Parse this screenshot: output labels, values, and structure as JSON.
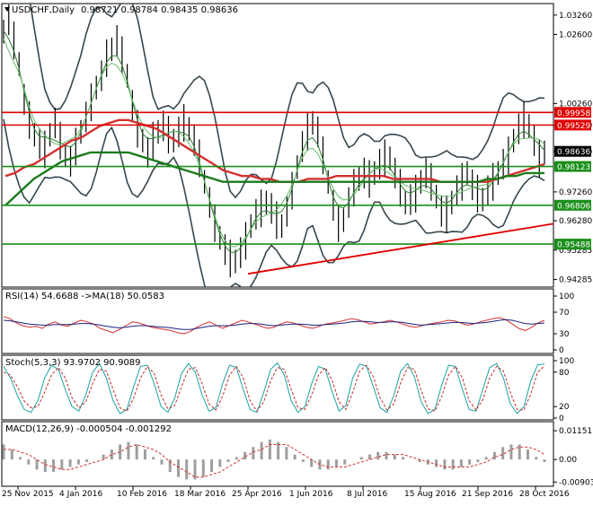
{
  "colors": {
    "background": "#ffffff",
    "frame": "#000000",
    "price_bar": "#000000",
    "ma_fast": "#2e7d32",
    "ma_mid": "#66bb6a",
    "ma_slow_red": "#d32f2f",
    "ma_slow_green": "#1b7a1b",
    "bollinger": "#37474f",
    "level_red": "#e00000",
    "level_green": "#1a8f1a",
    "trendline": "#e00000",
    "rsi_line": "#d32f2f",
    "rsi_signal": "#1a237e",
    "stoch_main": "#1aa3a3",
    "stoch_signal": "#c62828",
    "macd_hist": "#9e9e9e",
    "macd_signal": "#d32f2f",
    "current_price_tag": "#000000"
  },
  "header": {
    "symbol_label": "USDCHF,Daily",
    "ohlc": "0.98721 0.98784 0.98435 0.98636"
  },
  "chart_data": [
    {
      "type": "line",
      "panel": "price",
      "title": "USDCHF,Daily",
      "y_ticks": [
        "1.03260",
        "1.02600",
        "1.00260",
        "0.99520",
        "0.98630",
        "0.97260",
        "0.96280",
        "0.95285",
        "0.94285"
      ],
      "y_tick_values": [
        1.0326,
        1.026,
        1.0026,
        0.9952,
        0.9863,
        0.9726,
        0.9628,
        0.95285,
        0.94285
      ],
      "ylim": [
        0.9409,
        1.0359
      ],
      "levels": [
        {
          "label": "0.99958",
          "value": 0.99958,
          "color": "red"
        },
        {
          "label": "0.99529",
          "value": 0.99529,
          "color": "red"
        },
        {
          "label": "0.98123",
          "value": 0.98123,
          "color": "green"
        },
        {
          "label": "0.96806",
          "value": 0.96806,
          "color": "green"
        },
        {
          "label": "0.95488",
          "value": 0.95488,
          "color": "green"
        }
      ],
      "current_price_label": "0.98636",
      "current_price": 0.98636,
      "trendline": {
        "from": {
          "date": "25 Apr 2016",
          "value": 0.9448
        },
        "to": {
          "date": "28 Oct 2016",
          "value": 0.9618
        }
      },
      "close_series": [
        1.027,
        1.031,
        1.024,
        1.016,
        1.004,
        0.997,
        0.992,
        0.989,
        0.987,
        0.992,
        0.996,
        0.99,
        0.985,
        0.983,
        0.988,
        0.993,
        0.998,
        1.003,
        1.008,
        1.012,
        1.018,
        1.021,
        1.024,
        1.019,
        1.012,
        1.002,
        0.994,
        0.99,
        0.986,
        0.99,
        0.993,
        0.995,
        0.992,
        0.99,
        0.993,
        0.996,
        0.994,
        0.99,
        0.984,
        0.976,
        0.969,
        0.962,
        0.957,
        0.953,
        0.95,
        0.949,
        0.952,
        0.956,
        0.961,
        0.965,
        0.967,
        0.969,
        0.967,
        0.963,
        0.961,
        0.966,
        0.973,
        0.981,
        0.988,
        0.993,
        0.996,
        0.993,
        0.985,
        0.976,
        0.968,
        0.962,
        0.963,
        0.969,
        0.974,
        0.977,
        0.979,
        0.977,
        0.979,
        0.982,
        0.984,
        0.984,
        0.979,
        0.974,
        0.969,
        0.97,
        0.972,
        0.976,
        0.979,
        0.976,
        0.971,
        0.966,
        0.965,
        0.969,
        0.973,
        0.976,
        0.979,
        0.975,
        0.972,
        0.97,
        0.973,
        0.976,
        0.979,
        0.982,
        0.985,
        0.99,
        0.994,
        0.997,
        0.995,
        0.99,
        0.984,
        0.986
      ],
      "ma_red_series": [
        0.978,
        0.979,
        0.981,
        0.982,
        0.984,
        0.986,
        0.988,
        0.99,
        0.991,
        0.993,
        0.995,
        0.996,
        0.997,
        0.997,
        0.996,
        0.995,
        0.994,
        0.992,
        0.99,
        0.988,
        0.986,
        0.984,
        0.982,
        0.98,
        0.979,
        0.978,
        0.978,
        0.977,
        0.977,
        0.976,
        0.976,
        0.976,
        0.977,
        0.977,
        0.977,
        0.978,
        0.978,
        0.978,
        0.978,
        0.978,
        0.978,
        0.977,
        0.977,
        0.977,
        0.977,
        0.977,
        0.976,
        0.976,
        0.976,
        0.976,
        0.976,
        0.976,
        0.977,
        0.978,
        0.979,
        0.98,
        0.981,
        0.982
      ],
      "ma_green_series": [
        0.968,
        0.971,
        0.974,
        0.977,
        0.979,
        0.981,
        0.983,
        0.984,
        0.985,
        0.986,
        0.986,
        0.986,
        0.986,
        0.986,
        0.985,
        0.984,
        0.983,
        0.982,
        0.981,
        0.98,
        0.979,
        0.978,
        0.977,
        0.976,
        0.976,
        0.976,
        0.976,
        0.976,
        0.976,
        0.976,
        0.976,
        0.976,
        0.976,
        0.976,
        0.976,
        0.976,
        0.976,
        0.976,
        0.976,
        0.976,
        0.976,
        0.976,
        0.976,
        0.976,
        0.976,
        0.976,
        0.976,
        0.976,
        0.976,
        0.976,
        0.976,
        0.977,
        0.977,
        0.978,
        0.978,
        0.979,
        0.979,
        0.979
      ]
    },
    {
      "type": "line",
      "panel": "rsi",
      "title": "RSI(14) 54.6688 ->MA(18) 50.0583",
      "y_ticks": [
        "100",
        "70",
        "30",
        "0"
      ],
      "y_tick_values": [
        100,
        70,
        30,
        0
      ],
      "ylim": [
        0,
        100
      ],
      "series": [
        {
          "values": [
            62,
            58,
            50,
            45,
            42,
            44,
            40,
            48,
            52,
            46,
            44,
            50,
            55,
            52,
            48,
            40,
            36,
            32,
            38,
            45,
            52,
            50,
            46,
            42,
            40,
            38,
            36,
            32,
            30,
            34,
            42,
            48,
            52,
            46,
            40,
            45,
            50,
            55,
            52,
            48,
            44,
            40,
            42,
            48,
            52,
            50,
            46,
            42,
            40,
            44,
            48,
            50,
            52,
            55,
            58,
            56,
            52,
            48,
            50,
            52,
            55,
            52,
            48,
            44,
            42,
            45,
            48,
            50,
            52,
            55,
            54,
            50,
            46,
            48,
            52,
            55,
            58,
            60,
            56,
            48,
            40,
            36,
            42,
            50,
            55
          ]
        },
        {
          "values": [
            55,
            54,
            52,
            50,
            48,
            47,
            46,
            46,
            47,
            47,
            47,
            48,
            49,
            49,
            48,
            46,
            44,
            42,
            41,
            42,
            44,
            45,
            45,
            44,
            43,
            42,
            41,
            39,
            38,
            38,
            40,
            42,
            44,
            45,
            45,
            45,
            46,
            48,
            49,
            49,
            48,
            46,
            45,
            46,
            47,
            48,
            48,
            47,
            46,
            46,
            47,
            48,
            49,
            50,
            52,
            53,
            53,
            52,
            51,
            51,
            52,
            52,
            51,
            49,
            47,
            46,
            47,
            48,
            49,
            50,
            51,
            51,
            50,
            49,
            50,
            51,
            53,
            55,
            56,
            55,
            52,
            49,
            48,
            49,
            50
          ]
        }
      ]
    },
    {
      "type": "line",
      "panel": "stochastic",
      "title": "Stoch(5,3,3) 93.9702 90.9089",
      "y_ticks": [
        "100",
        "80",
        "20",
        "0"
      ],
      "y_tick_values": [
        100,
        80,
        20,
        0
      ],
      "ylim": [
        0,
        100
      ],
      "series": [
        {
          "values": [
            90,
            70,
            40,
            15,
            10,
            30,
            70,
            92,
            85,
            50,
            20,
            12,
            40,
            80,
            95,
            70,
            30,
            8,
            15,
            55,
            90,
            92,
            60,
            20,
            10,
            35,
            78,
            95,
            80,
            40,
            12,
            18,
            60,
            92,
            88,
            50,
            15,
            10,
            45,
            85,
            96,
            75,
            30,
            10,
            20,
            60,
            90,
            85,
            45,
            12,
            22,
            70,
            94,
            90,
            55,
            18,
            10,
            40,
            82,
            95,
            72,
            28,
            8,
            16,
            58,
            92,
            90,
            50,
            15,
            12,
            50,
            88,
            95,
            70,
            25,
            8,
            20,
            65,
            93,
            94
          ]
        },
        {
          "values": [
            80,
            75,
            55,
            30,
            18,
            20,
            45,
            75,
            88,
            70,
            35,
            18,
            28,
            60,
            85,
            82,
            50,
            18,
            12,
            35,
            70,
            90,
            78,
            40,
            16,
            22,
            55,
            85,
            88,
            60,
            25,
            14,
            38,
            75,
            90,
            70,
            30,
            12,
            28,
            65,
            88,
            85,
            50,
            18,
            15,
            40,
            75,
            88,
            65,
            28,
            15,
            45,
            82,
            92,
            72,
            35,
            14,
            25,
            62,
            88,
            85,
            48,
            16,
            12,
            38,
            75,
            90,
            70,
            30,
            14,
            32,
            70,
            90,
            82,
            45,
            15,
            14,
            42,
            80,
            91
          ]
        }
      ]
    },
    {
      "type": "line",
      "panel": "macd",
      "title": "MACD(12,26,9) -0.000504 -0.001292",
      "y_ticks": [
        "0.011517",
        "0.00",
        "-0.00903"
      ],
      "y_tick_values": [
        0.011517,
        0.0,
        -0.00903
      ],
      "ylim": [
        -0.01,
        0.013
      ],
      "series": [
        {
          "values": [
            0.006,
            0.004,
            0.001,
            -0.002,
            -0.004,
            -0.005,
            -0.005,
            -0.004,
            -0.003,
            -0.002,
            -0.001,
            0.0,
            0.002,
            0.004,
            0.006,
            0.007,
            0.006,
            0.004,
            0.001,
            -0.002,
            -0.005,
            -0.007,
            -0.008,
            -0.008,
            -0.007,
            -0.005,
            -0.003,
            -0.001,
            0.001,
            0.003,
            0.005,
            0.007,
            0.008,
            0.007,
            0.005,
            0.002,
            -0.001,
            -0.003,
            -0.004,
            -0.004,
            -0.003,
            -0.002,
            0.0,
            0.001,
            0.002,
            0.003,
            0.003,
            0.002,
            0.001,
            0.0,
            -0.001,
            -0.002,
            -0.003,
            -0.004,
            -0.004,
            -0.003,
            -0.002,
            -0.001,
            0.001,
            0.003,
            0.005,
            0.006,
            0.006,
            0.004,
            0.001,
            -0.001
          ]
        },
        {
          "values": [
            0.004,
            0.004,
            0.003,
            0.002,
            0.0,
            -0.002,
            -0.003,
            -0.004,
            -0.004,
            -0.003,
            -0.002,
            -0.001,
            0.0,
            0.002,
            0.003,
            0.005,
            0.006,
            0.005,
            0.004,
            0.002,
            -0.001,
            -0.003,
            -0.005,
            -0.007,
            -0.007,
            -0.006,
            -0.005,
            -0.003,
            -0.001,
            0.001,
            0.003,
            0.004,
            0.006,
            0.006,
            0.006,
            0.004,
            0.002,
            0.0,
            -0.002,
            -0.003,
            -0.003,
            -0.003,
            -0.002,
            -0.001,
            0.0,
            0.001,
            0.002,
            0.002,
            0.002,
            0.001,
            0.0,
            -0.001,
            -0.002,
            -0.003,
            -0.003,
            -0.003,
            -0.003,
            -0.002,
            -0.001,
            0.001,
            0.002,
            0.004,
            0.005,
            0.005,
            0.004,
            0.002
          ]
        }
      ]
    }
  ],
  "x_axis": {
    "tick_labels": [
      "25 Nov 2015",
      "4 Jan 2016",
      "10 Feb 2016",
      "18 Mar 2016",
      "25 Apr 2016",
      "1 Jun 2016",
      "8 Jul 2016",
      "15 Aug 2016",
      "21 Sep 2016",
      "28 Oct 2016"
    ]
  }
}
